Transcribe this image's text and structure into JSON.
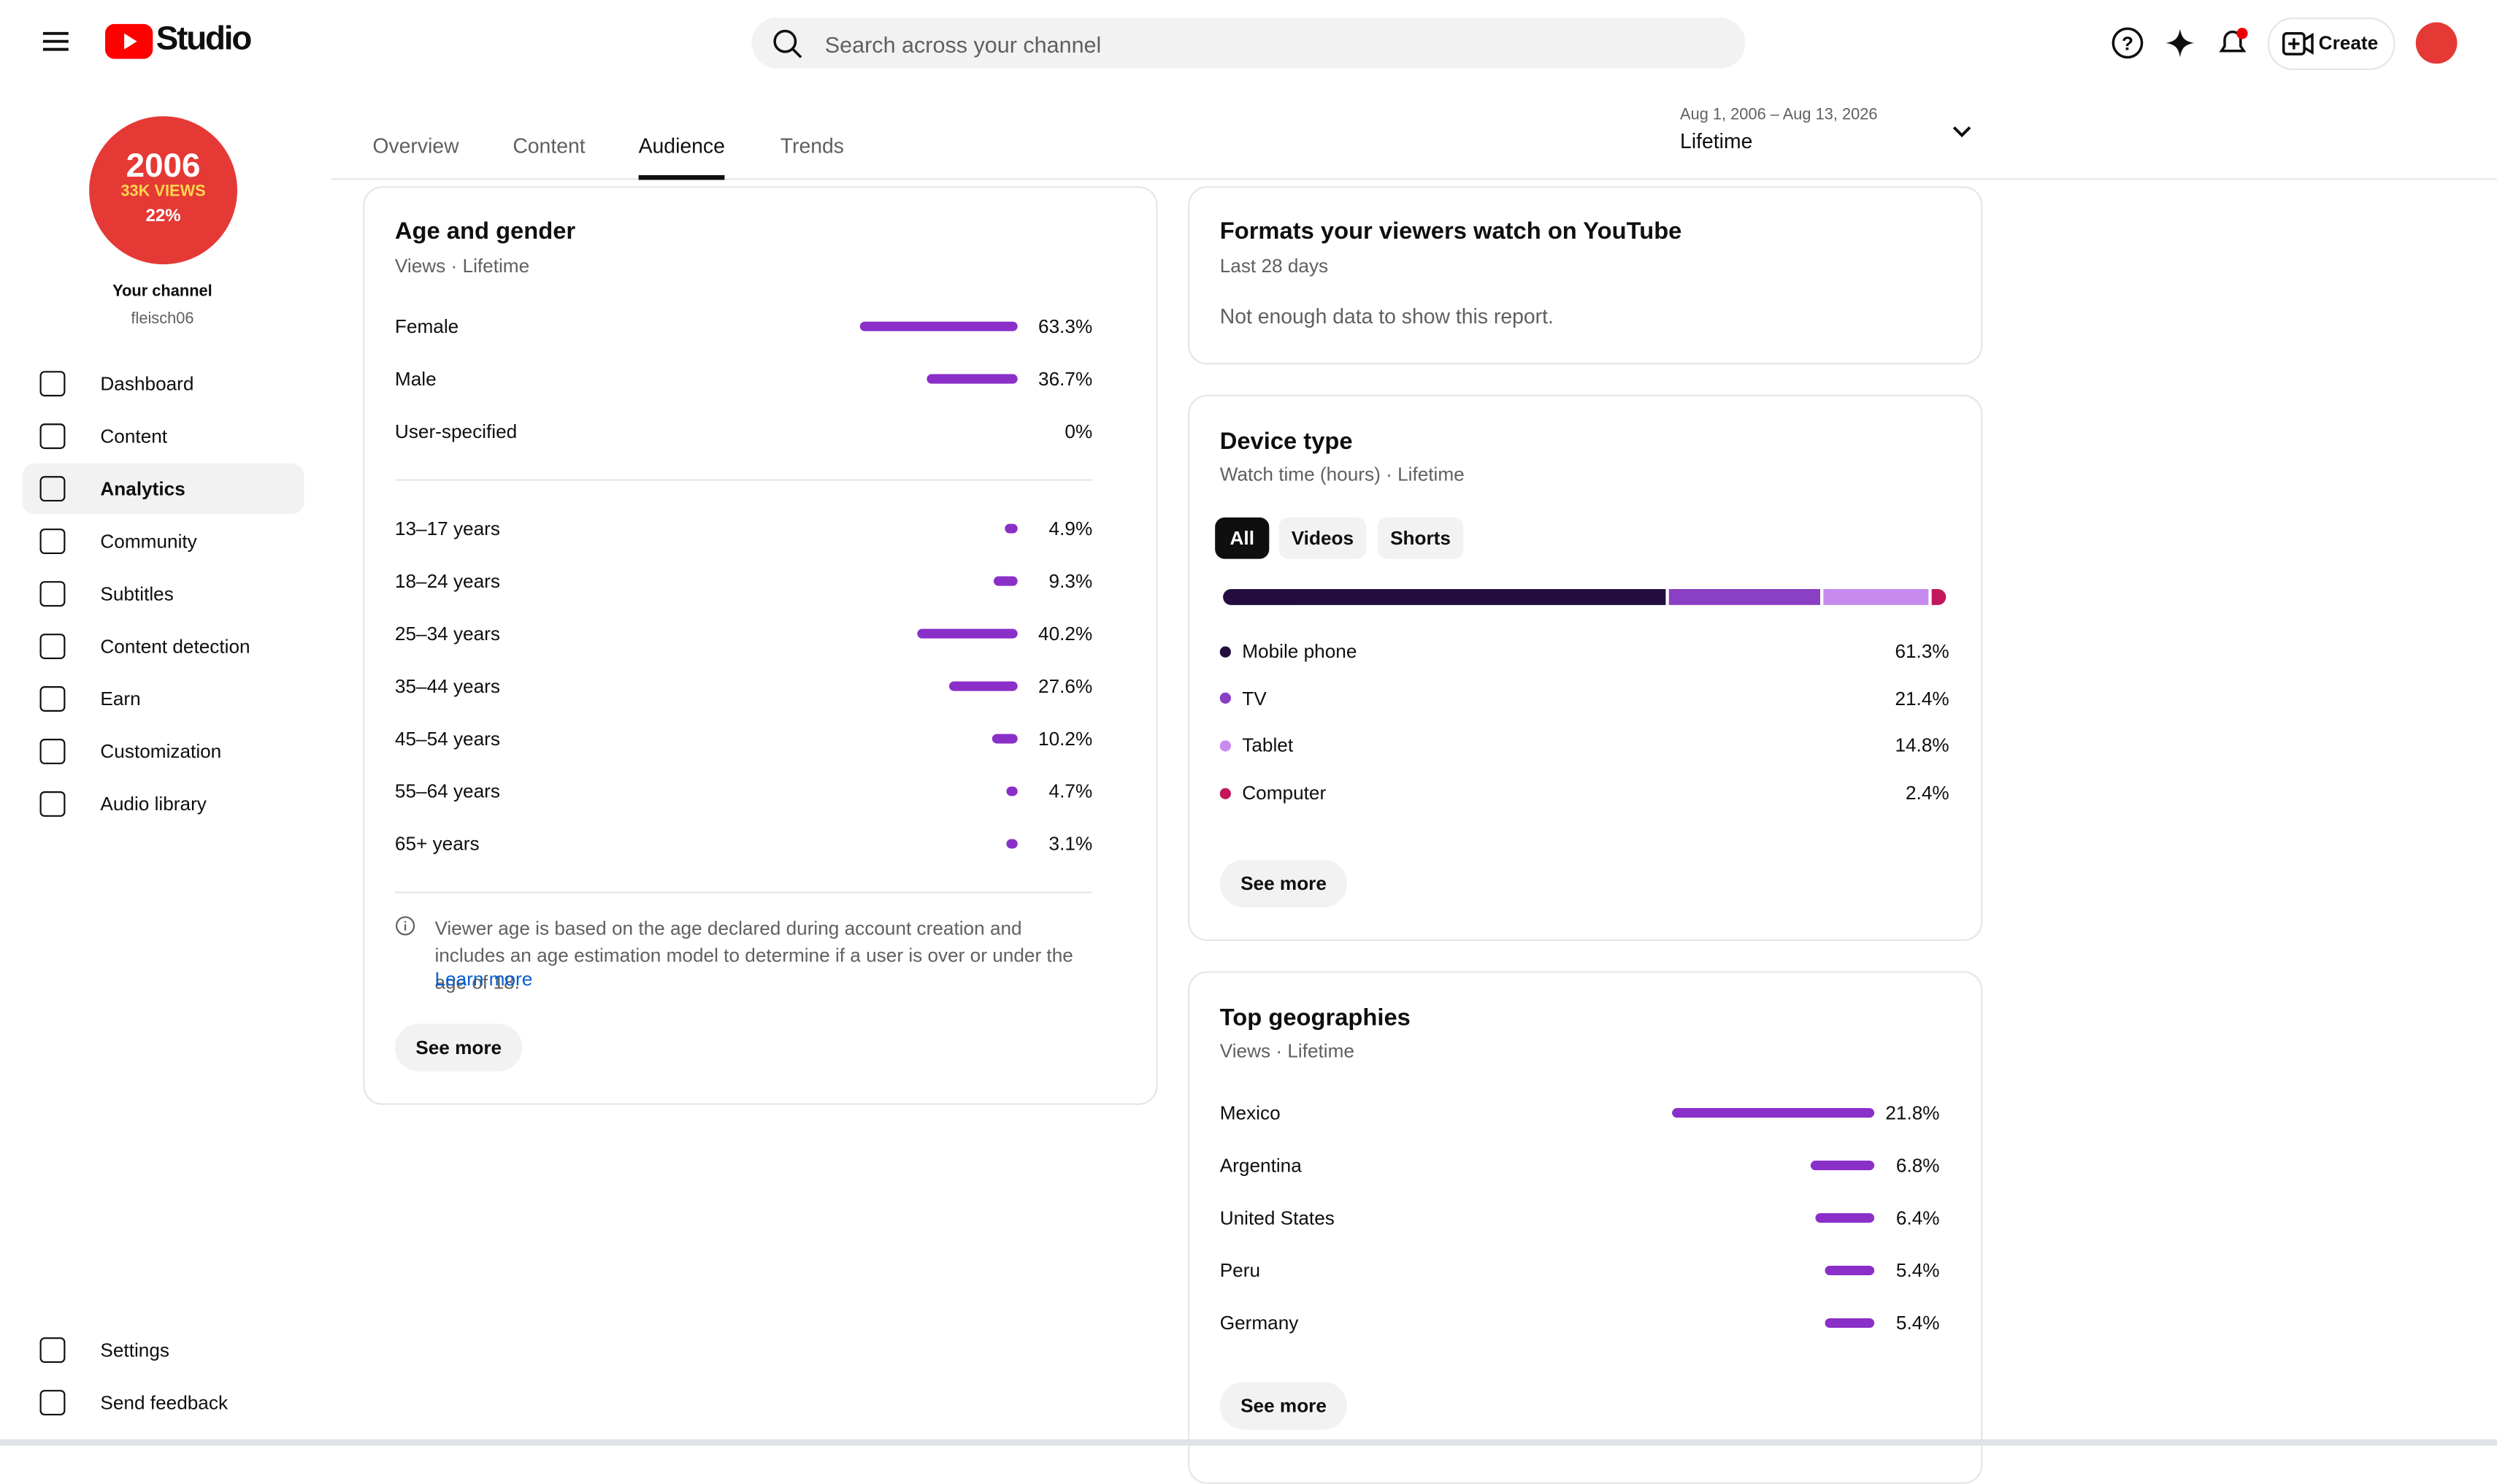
{
  "header": {
    "logo": "Studio",
    "search_placeholder": "Search across your channel",
    "create": "Create"
  },
  "sidebar": {
    "avatar_lines": [
      "2006",
      "33K VIEWS",
      "22%"
    ],
    "channel_title": "Your channel",
    "handle": "fleisch06",
    "nav": [
      "Dashboard",
      "Content",
      "Analytics",
      "Community",
      "Subtitles",
      "Content detection",
      "Earn",
      "Customization",
      "Audio library"
    ],
    "footer_nav": [
      "Settings",
      "Send feedback"
    ]
  },
  "tabs": [
    "Overview",
    "Content",
    "Audience",
    "Trends"
  ],
  "date_range": {
    "range": "Aug 1, 2006 – Aug 13, 2026",
    "label": "Lifetime"
  },
  "age_gender": {
    "title": "Age and gender",
    "subtitle": "Views · Lifetime",
    "color": "#8a2fc8",
    "gender": {
      "categories": [
        "Female",
        "Male",
        "User-specified"
      ],
      "values": [
        63.3,
        36.7,
        0
      ],
      "value_labels": [
        "63.3%",
        "36.7%",
        "0%"
      ]
    },
    "age": {
      "categories": [
        "13–17 years",
        "18–24 years",
        "25–34 years",
        "35–44 years",
        "45–54 years",
        "55–64 years",
        "65+ years"
      ],
      "values": [
        4.9,
        9.3,
        40.2,
        27.6,
        10.2,
        4.7,
        3.1
      ],
      "value_labels": [
        "4.9%",
        "9.3%",
        "40.2%",
        "27.6%",
        "10.2%",
        "4.7%",
        "3.1%"
      ]
    },
    "note": "Viewer age is based on the age declared during account creation and includes an age estimation model to determine if a user is over or under the age of 18.",
    "link": "Learn more",
    "button": "See more"
  },
  "formats": {
    "title": "Formats your viewers watch on YouTube",
    "subtitle": "Last 28 days",
    "message": "Not enough data to show this report."
  },
  "device": {
    "title": "Device type",
    "subtitle": "Watch time (hours) · Lifetime",
    "filters": [
      "All",
      "Videos",
      "Shorts"
    ],
    "categories": [
      "Mobile phone",
      "TV",
      "Tablet",
      "Computer"
    ],
    "values": [
      61.3,
      21.4,
      14.8,
      2.4
    ],
    "value_labels": [
      "61.3%",
      "21.4%",
      "14.8%",
      "2.4%"
    ],
    "colors": [
      "#230d3f",
      "#8a3fc4",
      "#c78bef",
      "#c2185b"
    ],
    "button": "See more"
  },
  "geographies": {
    "title": "Top geographies",
    "subtitle": "Views · Lifetime",
    "color": "#8a2fc8",
    "categories": [
      "Mexico",
      "Argentina",
      "United States",
      "Peru",
      "Germany"
    ],
    "values": [
      21.8,
      6.8,
      6.4,
      5.4,
      5.4
    ],
    "value_labels": [
      "21.8%",
      "6.8%",
      "6.4%",
      "5.4%",
      "5.4%"
    ],
    "button": "See more"
  }
}
